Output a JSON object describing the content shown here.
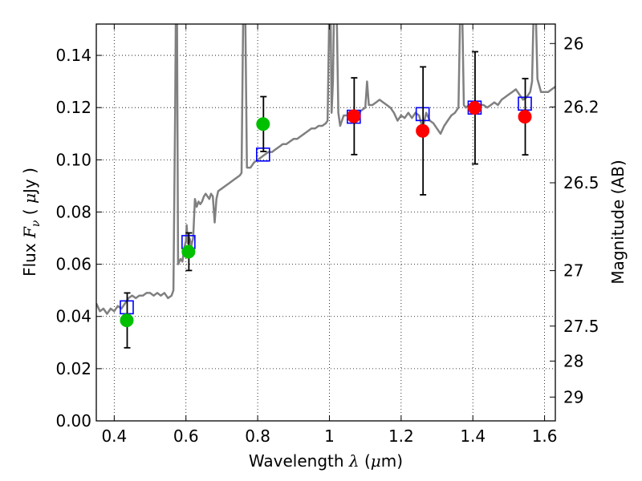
{
  "chart_data": {
    "type": "scatter",
    "title": "",
    "xlabel": "Wavelength",
    "xlabel_symbol": "λ",
    "xlabel_unit_open": " (",
    "xlabel_unit_mu": "μ",
    "xlabel_unit_close": "m)",
    "ylabel": "Flux",
    "ylabel_symbol": "F",
    "ylabel_subscript": "ν",
    "ylabel_unit_open": " ( ",
    "ylabel_unit_mu": "μ",
    "ylabel_unit_close": "Jy )",
    "y2label": "Magnitude (AB)",
    "xlim": [
      0.35,
      1.63
    ],
    "ylim": [
      0.0,
      0.152
    ],
    "grid": true,
    "x_ticks": [
      0.4,
      0.6,
      0.8,
      1.0,
      1.2,
      1.4,
      1.6
    ],
    "x_tick_labels": [
      "0.4",
      "0.6",
      "0.8",
      "1",
      "1.2",
      "1.4",
      "1.6"
    ],
    "y_ticks": [
      0.0,
      0.02,
      0.04,
      0.06,
      0.08,
      0.1,
      0.12,
      0.14
    ],
    "y_tick_labels": [
      "0.00",
      "0.02",
      "0.04",
      "0.06",
      "0.08",
      "0.10",
      "0.12",
      "0.14"
    ],
    "mag_ticks": [
      26,
      26.2,
      26.5,
      27,
      27.5,
      28,
      29
    ],
    "mag_tick_labels": [
      "26",
      "26.2",
      "26.5",
      "27",
      "27.5",
      "28",
      "29"
    ],
    "colors": {
      "model": "#808080",
      "model_squares": "#0000ff",
      "green": "#00c000",
      "red": "#ff0000",
      "errorbar": "#000000"
    },
    "series": [
      {
        "marker": "square",
        "points": [
          {
            "x": 0.435,
            "y": 0.0435
          },
          {
            "x": 0.607,
            "y": 0.0685
          },
          {
            "x": 0.815,
            "y": 0.102
          },
          {
            "x": 1.068,
            "y": 0.1165
          },
          {
            "x": 1.26,
            "y": 0.1175
          },
          {
            "x": 1.405,
            "y": 0.12
          },
          {
            "x": 1.545,
            "y": 0.1215
          }
        ]
      },
      {
        "marker": "circle",
        "color": "green",
        "points": [
          {
            "x": 0.435,
            "y": 0.0385,
            "err": 0.0105
          },
          {
            "x": 0.607,
            "y": 0.0648,
            "err": 0.0072
          },
          {
            "x": 0.815,
            "y": 0.1137,
            "err": 0.0105
          }
        ]
      },
      {
        "marker": "circle",
        "color": "red",
        "points": [
          {
            "x": 1.068,
            "y": 0.1167,
            "err": 0.0147
          },
          {
            "x": 1.26,
            "y": 0.1111,
            "err": 0.0245
          },
          {
            "x": 1.405,
            "y": 0.1199,
            "err": 0.0215
          },
          {
            "x": 1.545,
            "y": 0.1165,
            "err": 0.0146
          }
        ]
      }
    ],
    "model_spectrum": [
      [
        0.35,
        0.045
      ],
      [
        0.36,
        0.042
      ],
      [
        0.37,
        0.043
      ],
      [
        0.38,
        0.041
      ],
      [
        0.39,
        0.043
      ],
      [
        0.4,
        0.042
      ],
      [
        0.41,
        0.044
      ],
      [
        0.42,
        0.043
      ],
      [
        0.43,
        0.045
      ],
      [
        0.44,
        0.047
      ],
      [
        0.45,
        0.048
      ],
      [
        0.46,
        0.047
      ],
      [
        0.47,
        0.048
      ],
      [
        0.48,
        0.048
      ],
      [
        0.49,
        0.049
      ],
      [
        0.5,
        0.049
      ],
      [
        0.51,
        0.048
      ],
      [
        0.52,
        0.049
      ],
      [
        0.53,
        0.048
      ],
      [
        0.54,
        0.049
      ],
      [
        0.55,
        0.047
      ],
      [
        0.56,
        0.048
      ],
      [
        0.565,
        0.05
      ],
      [
        0.57,
        0.12
      ],
      [
        0.572,
        0.16
      ],
      [
        0.575,
        0.16
      ],
      [
        0.578,
        0.06
      ],
      [
        0.585,
        0.062
      ],
      [
        0.59,
        0.061
      ],
      [
        0.595,
        0.066
      ],
      [
        0.6,
        0.069
      ],
      [
        0.602,
        0.075
      ],
      [
        0.605,
        0.068
      ],
      [
        0.61,
        0.07
      ],
      [
        0.615,
        0.067
      ],
      [
        0.62,
        0.07
      ],
      [
        0.625,
        0.085
      ],
      [
        0.63,
        0.082
      ],
      [
        0.635,
        0.084
      ],
      [
        0.64,
        0.083
      ],
      [
        0.645,
        0.084
      ],
      [
        0.65,
        0.086
      ],
      [
        0.655,
        0.087
      ],
      [
        0.66,
        0.086
      ],
      [
        0.665,
        0.085
      ],
      [
        0.67,
        0.087
      ],
      [
        0.675,
        0.086
      ],
      [
        0.68,
        0.076
      ],
      [
        0.685,
        0.085
      ],
      [
        0.69,
        0.088
      ],
      [
        0.7,
        0.089
      ],
      [
        0.71,
        0.09
      ],
      [
        0.72,
        0.091
      ],
      [
        0.73,
        0.092
      ],
      [
        0.74,
        0.093
      ],
      [
        0.75,
        0.094
      ],
      [
        0.755,
        0.095
      ],
      [
        0.76,
        0.16
      ],
      [
        0.765,
        0.16
      ],
      [
        0.77,
        0.097
      ],
      [
        0.78,
        0.097
      ],
      [
        0.79,
        0.099
      ],
      [
        0.8,
        0.1
      ],
      [
        0.81,
        0.101
      ],
      [
        0.82,
        0.102
      ],
      [
        0.83,
        0.103
      ],
      [
        0.84,
        0.103
      ],
      [
        0.85,
        0.104
      ],
      [
        0.86,
        0.105
      ],
      [
        0.87,
        0.106
      ],
      [
        0.88,
        0.106
      ],
      [
        0.89,
        0.107
      ],
      [
        0.9,
        0.108
      ],
      [
        0.91,
        0.108
      ],
      [
        0.92,
        0.109
      ],
      [
        0.93,
        0.11
      ],
      [
        0.94,
        0.111
      ],
      [
        0.95,
        0.112
      ],
      [
        0.96,
        0.112
      ],
      [
        0.97,
        0.113
      ],
      [
        0.98,
        0.113
      ],
      [
        0.99,
        0.114
      ],
      [
        0.995,
        0.115
      ],
      [
        1.0,
        0.16
      ],
      [
        1.003,
        0.16
      ],
      [
        1.006,
        0.118
      ],
      [
        1.01,
        0.13
      ],
      [
        1.013,
        0.16
      ],
      [
        1.02,
        0.16
      ],
      [
        1.025,
        0.118
      ],
      [
        1.03,
        0.113
      ],
      [
        1.04,
        0.117
      ],
      [
        1.05,
        0.117
      ],
      [
        1.06,
        0.118
      ],
      [
        1.07,
        0.117
      ],
      [
        1.08,
        0.118
      ],
      [
        1.09,
        0.119
      ],
      [
        1.1,
        0.12
      ],
      [
        1.105,
        0.13
      ],
      [
        1.11,
        0.121
      ],
      [
        1.12,
        0.121
      ],
      [
        1.13,
        0.122
      ],
      [
        1.14,
        0.123
      ],
      [
        1.15,
        0.122
      ],
      [
        1.16,
        0.121
      ],
      [
        1.17,
        0.12
      ],
      [
        1.18,
        0.118
      ],
      [
        1.19,
        0.115
      ],
      [
        1.2,
        0.117
      ],
      [
        1.21,
        0.116
      ],
      [
        1.22,
        0.118
      ],
      [
        1.23,
        0.116
      ],
      [
        1.24,
        0.118
      ],
      [
        1.25,
        0.117
      ],
      [
        1.26,
        0.112
      ],
      [
        1.27,
        0.118
      ],
      [
        1.28,
        0.115
      ],
      [
        1.29,
        0.114
      ],
      [
        1.3,
        0.112
      ],
      [
        1.31,
        0.11
      ],
      [
        1.32,
        0.113
      ],
      [
        1.33,
        0.115
      ],
      [
        1.34,
        0.117
      ],
      [
        1.35,
        0.118
      ],
      [
        1.36,
        0.12
      ],
      [
        1.365,
        0.16
      ],
      [
        1.37,
        0.16
      ],
      [
        1.375,
        0.121
      ],
      [
        1.38,
        0.12
      ],
      [
        1.39,
        0.121
      ],
      [
        1.4,
        0.12
      ],
      [
        1.41,
        0.12
      ],
      [
        1.42,
        0.121
      ],
      [
        1.43,
        0.121
      ],
      [
        1.44,
        0.12
      ],
      [
        1.45,
        0.121
      ],
      [
        1.46,
        0.122
      ],
      [
        1.47,
        0.121
      ],
      [
        1.48,
        0.123
      ],
      [
        1.49,
        0.124
      ],
      [
        1.5,
        0.125
      ],
      [
        1.51,
        0.126
      ],
      [
        1.52,
        0.127
      ],
      [
        1.53,
        0.125
      ],
      [
        1.54,
        0.123
      ],
      [
        1.55,
        0.124
      ],
      [
        1.56,
        0.126
      ],
      [
        1.565,
        0.13
      ],
      [
        1.57,
        0.16
      ],
      [
        1.575,
        0.16
      ],
      [
        1.58,
        0.131
      ],
      [
        1.59,
        0.126
      ],
      [
        1.6,
        0.126
      ],
      [
        1.61,
        0.126
      ],
      [
        1.62,
        0.127
      ],
      [
        1.63,
        0.128
      ]
    ]
  }
}
